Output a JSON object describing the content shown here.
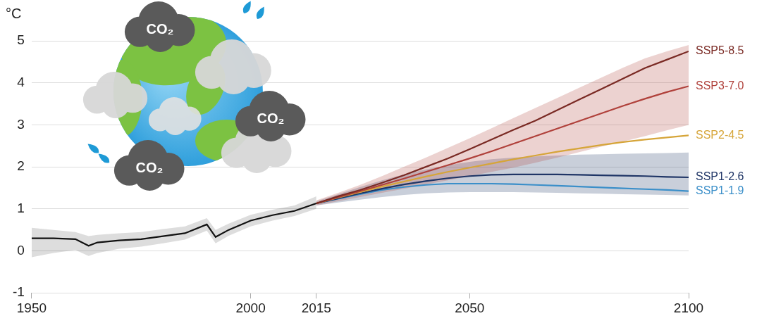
{
  "chart_data": {
    "type": "line",
    "ylabel": "°C",
    "annotations": [
      "CO₂",
      "CO₂",
      "CO₂"
    ],
    "xlim": [
      1950,
      2100
    ],
    "xticks": [
      1950,
      2000,
      2015,
      2050,
      2100
    ],
    "ylim": [
      -1,
      5
    ],
    "yticks": [
      -1,
      0,
      1,
      2,
      3,
      4,
      5
    ],
    "grid": true,
    "series": [
      {
        "color": "#111111",
        "x": [
          1950,
          1955,
          1960,
          1963,
          1965,
          1970,
          1975,
          1980,
          1985,
          1990,
          1992,
          1995,
          2000,
          2005,
          2010,
          2015
        ],
        "values": [
          0.3,
          0.3,
          0.28,
          0.12,
          0.2,
          0.25,
          0.28,
          0.35,
          0.42,
          0.63,
          0.33,
          0.5,
          0.72,
          0.85,
          0.95,
          1.13
        ],
        "lower": [
          -0.15,
          -0.05,
          0.02,
          -0.12,
          -0.05,
          0.05,
          0.1,
          0.18,
          0.27,
          0.48,
          0.18,
          0.36,
          0.58,
          0.72,
          0.83,
          1.0
        ],
        "upper": [
          0.55,
          0.5,
          0.45,
          0.35,
          0.38,
          0.42,
          0.45,
          0.52,
          0.58,
          0.78,
          0.5,
          0.65,
          0.86,
          0.98,
          1.08,
          1.3
        ]
      },
      {
        "name": "SSP5-8.5",
        "color": "#7a2a24",
        "x": [
          2015,
          2020,
          2025,
          2030,
          2035,
          2040,
          2045,
          2050,
          2055,
          2060,
          2065,
          2070,
          2075,
          2080,
          2085,
          2090,
          2095,
          2100
        ],
        "values": [
          1.13,
          1.3,
          1.45,
          1.62,
          1.8,
          2.0,
          2.2,
          2.42,
          2.65,
          2.88,
          3.1,
          3.35,
          3.6,
          3.85,
          4.1,
          4.35,
          4.55,
          4.75
        ]
      },
      {
        "name": "SSP3-7.0",
        "color": "#b0413b",
        "x": [
          2015,
          2020,
          2025,
          2030,
          2035,
          2040,
          2045,
          2050,
          2055,
          2060,
          2065,
          2070,
          2075,
          2080,
          2085,
          2090,
          2095,
          2100
        ],
        "values": [
          1.13,
          1.28,
          1.42,
          1.57,
          1.72,
          1.88,
          2.04,
          2.2,
          2.37,
          2.55,
          2.73,
          2.91,
          3.09,
          3.27,
          3.45,
          3.62,
          3.78,
          3.92
        ],
        "lower": [
          1.08,
          1.18,
          1.28,
          1.38,
          1.48,
          1.58,
          1.68,
          1.78,
          1.88,
          1.98,
          2.1,
          2.22,
          2.35,
          2.48,
          2.6,
          2.73,
          2.87,
          3.0
        ],
        "upper": [
          1.2,
          1.38,
          1.57,
          1.78,
          2.0,
          2.22,
          2.45,
          2.68,
          2.92,
          3.16,
          3.4,
          3.64,
          3.88,
          4.12,
          4.36,
          4.58,
          4.75,
          4.9
        ]
      },
      {
        "name": "SSP2-4.5",
        "color": "#d6a539",
        "x": [
          2015,
          2020,
          2025,
          2030,
          2035,
          2040,
          2045,
          2050,
          2055,
          2060,
          2065,
          2070,
          2075,
          2080,
          2085,
          2090,
          2095,
          2100
        ],
        "values": [
          1.13,
          1.27,
          1.4,
          1.53,
          1.65,
          1.77,
          1.88,
          1.98,
          2.08,
          2.18,
          2.27,
          2.36,
          2.44,
          2.52,
          2.59,
          2.65,
          2.7,
          2.75
        ]
      },
      {
        "name": "SSP1-2.6",
        "color": "#1f3566",
        "x": [
          2015,
          2020,
          2025,
          2030,
          2035,
          2040,
          2045,
          2050,
          2055,
          2060,
          2065,
          2070,
          2075,
          2080,
          2085,
          2090,
          2095,
          2100
        ],
        "values": [
          1.13,
          1.25,
          1.37,
          1.48,
          1.58,
          1.66,
          1.73,
          1.78,
          1.81,
          1.82,
          1.82,
          1.82,
          1.81,
          1.8,
          1.79,
          1.78,
          1.76,
          1.75
        ],
        "lower": [
          1.08,
          1.15,
          1.22,
          1.28,
          1.33,
          1.37,
          1.39,
          1.4,
          1.4,
          1.4,
          1.39,
          1.38,
          1.37,
          1.36,
          1.35,
          1.34,
          1.33,
          1.32
        ],
        "upper": [
          1.18,
          1.35,
          1.52,
          1.68,
          1.82,
          1.94,
          2.04,
          2.12,
          2.18,
          2.22,
          2.25,
          2.27,
          2.29,
          2.3,
          2.31,
          2.32,
          2.33,
          2.34
        ]
      },
      {
        "name": "SSP1-1.9",
        "color": "#3b8fc9",
        "x": [
          2015,
          2020,
          2025,
          2030,
          2035,
          2040,
          2045,
          2050,
          2055,
          2060,
          2065,
          2070,
          2075,
          2080,
          2085,
          2090,
          2095,
          2100
        ],
        "values": [
          1.13,
          1.24,
          1.35,
          1.45,
          1.52,
          1.57,
          1.6,
          1.6,
          1.6,
          1.59,
          1.57,
          1.55,
          1.53,
          1.51,
          1.49,
          1.47,
          1.45,
          1.42
        ]
      }
    ]
  }
}
